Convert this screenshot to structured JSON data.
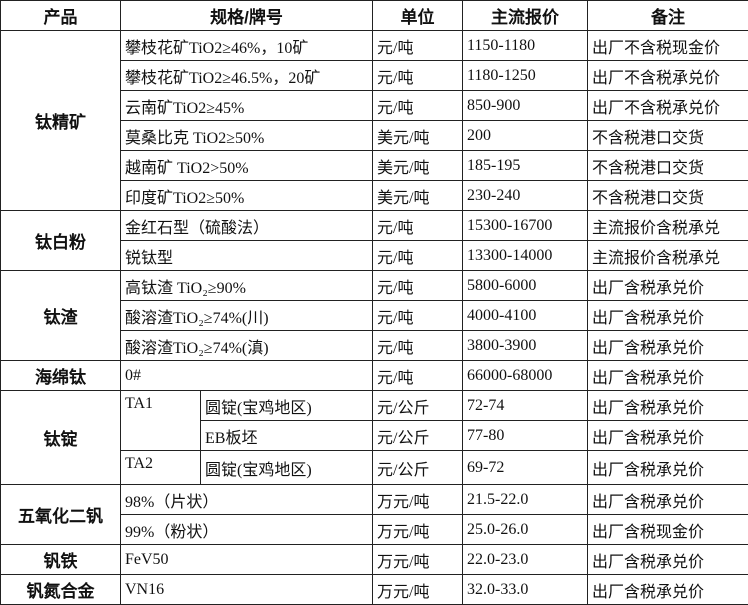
{
  "header": [
    "产品",
    "规格/牌号",
    "单位",
    "主流报价",
    "备注"
  ],
  "groups": [
    {
      "product": "钛精矿",
      "rows": [
        {
          "spec": "攀枝花矿TiO2≥46%，10矿",
          "unit": "元/吨",
          "price": "1150-1180",
          "note": "出厂不含税现金价"
        },
        {
          "spec": "攀枝花矿TiO2≥46.5%，20矿",
          "unit": "元/吨",
          "price": "1180-1250",
          "note": "出厂不含税承兑价"
        },
        {
          "spec": "云南矿TiO2≥45%",
          "unit": "元/吨",
          "price": "850-900",
          "note": "出厂不含税承兑价"
        },
        {
          "spec": "莫桑比克 TiO2≥50%",
          "unit": "美元/吨",
          "price": "200",
          "note": "不含税港口交货"
        },
        {
          "spec": "越南矿 TiO2>50%",
          "unit": "美元/吨",
          "price": "185-195",
          "note": "不含税港口交货"
        },
        {
          "spec": "印度矿TiO2≥50%",
          "unit": "美元/吨",
          "price": "230-240",
          "note": "不含税港口交货"
        }
      ]
    },
    {
      "product": "钛白粉",
      "rows": [
        {
          "spec": "金红石型（硫酸法）",
          "unit": "元/吨",
          "price": "15300-16700",
          "note": "主流报价含税承兑"
        },
        {
          "spec": "锐钛型",
          "unit": "元/吨",
          "price": "13300-14000",
          "note": "主流报价含税承兑"
        }
      ]
    },
    {
      "product": "钛渣",
      "rows": [
        {
          "spec": "高钛渣 TiO₂≥90%",
          "unit": "元/吨",
          "price": "5800-6000",
          "note": "出厂含税承兑价"
        },
        {
          "spec": "酸溶渣TiO₂≥74%(川)",
          "unit": "元/吨",
          "price": "4000-4100",
          "note": "出厂含税承兑价"
        },
        {
          "spec": "酸溶渣TiO₂≥74%(滇)",
          "unit": "元/吨",
          "price": "3800-3900",
          "note": "出厂含税承兑价"
        }
      ]
    },
    {
      "product": "海绵钛",
      "rows": [
        {
          "spec": "0#",
          "unit": "元/吨",
          "price": "66000-68000",
          "note": "出厂含税承兑价"
        }
      ]
    },
    {
      "product": "钛锭",
      "rows": [
        {
          "spec": "TA1",
          "spec_span": 2,
          "grade": "圆锭(宝鸡地区)",
          "unit": "元/公斤",
          "price": "72-74",
          "note": "出厂含税承兑价"
        },
        {
          "grade": "EB板坯",
          "unit": "元/公斤",
          "price": "77-80",
          "note": "出厂含税承兑价"
        },
        {
          "spec": "TA2",
          "spec_span": 1,
          "grade": "圆锭(宝鸡地区)",
          "unit": "元/公斤",
          "price": "69-72",
          "note": "出厂含税承兑价"
        }
      ]
    },
    {
      "product": "五氧化二钒",
      "rows": [
        {
          "spec": "98%（片状）",
          "unit": "万元/吨",
          "price": "21.5-22.0",
          "note": "出厂含税承兑价"
        },
        {
          "spec": "99%（粉状）",
          "unit": "万元/吨",
          "price": "25.0-26.0",
          "note": "出厂含税现金价"
        }
      ]
    },
    {
      "product": "钒铁",
      "rows": [
        {
          "spec": "FeV50",
          "unit": "万元/吨",
          "price": "22.0-23.0",
          "note": "出厂含税承兑价"
        }
      ]
    },
    {
      "product": "钒氮合金",
      "rows": [
        {
          "spec": "VN16",
          "unit": "万元/吨",
          "price": "32.0-33.0",
          "note": "出厂含税承兑价"
        }
      ]
    }
  ]
}
